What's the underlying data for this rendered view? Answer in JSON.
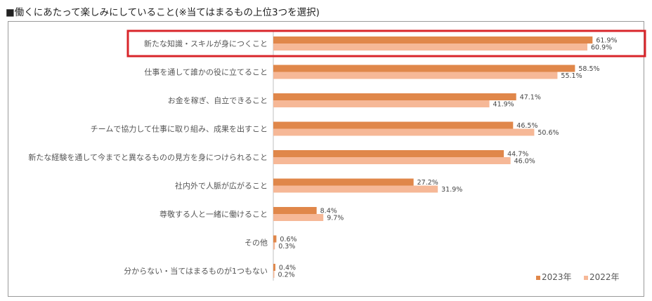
{
  "chart_data": {
    "type": "bar",
    "orientation": "horizontal",
    "title": "■働くにあたって楽しみにしていること(※当てはまるもの上位3つを選択)",
    "categories": [
      "新たな知識・スキルが身につくこと",
      "仕事を通して誰かの役に立てること",
      "お金を稼ぎ、自立できること",
      "チームで協力して仕事に取り組み、成果を出すこと",
      "新たな経験を通して今までと異なるものの見方を身につけられること",
      "社内外で人脈が広がること",
      "尊敬する人と一緒に働けること",
      "その他",
      "分からない・当てはまるものが1つもない"
    ],
    "series": [
      {
        "name": "2023年",
        "color": "#E0874A",
        "values": [
          61.9,
          58.5,
          47.1,
          46.5,
          44.7,
          27.2,
          8.4,
          0.6,
          0.4
        ]
      },
      {
        "name": "2022年",
        "color": "#F6B897",
        "values": [
          60.9,
          55.1,
          41.9,
          50.6,
          46.0,
          31.9,
          9.7,
          0.3,
          0.2
        ]
      }
    ],
    "value_suffix": "%",
    "xlim": [
      0,
      70
    ],
    "legend_position": "bottom-right",
    "highlighted_category_index": 0,
    "highlight_color": "#D9262B"
  }
}
